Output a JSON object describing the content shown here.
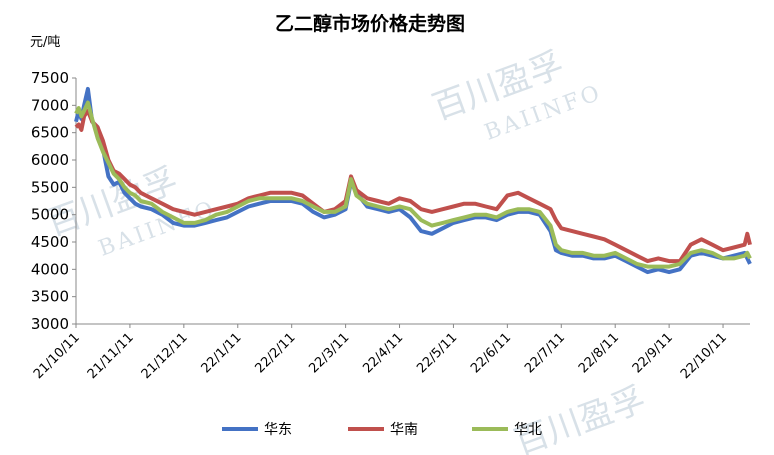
{
  "watermark": {
    "cn": "百川盈孚",
    "en": "BAIINFO"
  },
  "chart_data": {
    "type": "line",
    "title": "乙二醇市场价格走势图",
    "ylabel": "元/吨",
    "xlabel": "",
    "ylim": [
      3000,
      7500
    ],
    "yticks": [
      3000,
      3500,
      4000,
      4500,
      5000,
      5500,
      6000,
      6500,
      7000,
      7500
    ],
    "categories": [
      "21/10/11",
      "21/11/11",
      "21/12/11",
      "22/1/11",
      "22/2/11",
      "22/3/11",
      "22/4/11",
      "22/5/11",
      "22/6/11",
      "22/7/11",
      "22/8/11",
      "22/9/11",
      "22/10/11"
    ],
    "legend_position": "bottom",
    "grid": false,
    "series": [
      {
        "name": "华东",
        "color": "#4472c4",
        "values": [
          [
            0,
            6700
          ],
          [
            0.05,
            6900
          ],
          [
            0.1,
            6750
          ],
          [
            0.15,
            7000
          ],
          [
            0.22,
            7300
          ],
          [
            0.3,
            6700
          ],
          [
            0.4,
            6600
          ],
          [
            0.5,
            6200
          ],
          [
            0.6,
            5700
          ],
          [
            0.7,
            5550
          ],
          [
            0.8,
            5600
          ],
          [
            0.9,
            5400
          ],
          [
            1.0,
            5300
          ],
          [
            1.1,
            5200
          ],
          [
            1.2,
            5150
          ],
          [
            1.4,
            5100
          ],
          [
            1.6,
            5000
          ],
          [
            1.8,
            4850
          ],
          [
            2.0,
            4800
          ],
          [
            2.2,
            4800
          ],
          [
            2.4,
            4850
          ],
          [
            2.6,
            4900
          ],
          [
            2.8,
            4950
          ],
          [
            3.0,
            5050
          ],
          [
            3.2,
            5150
          ],
          [
            3.4,
            5200
          ],
          [
            3.6,
            5250
          ],
          [
            3.8,
            5250
          ],
          [
            4.0,
            5250
          ],
          [
            4.2,
            5200
          ],
          [
            4.4,
            5050
          ],
          [
            4.6,
            4950
          ],
          [
            4.8,
            5000
          ],
          [
            5.0,
            5100
          ],
          [
            5.1,
            5600
          ],
          [
            5.2,
            5400
          ],
          [
            5.4,
            5150
          ],
          [
            5.6,
            5100
          ],
          [
            5.8,
            5050
          ],
          [
            6.0,
            5100
          ],
          [
            6.2,
            4950
          ],
          [
            6.4,
            4700
          ],
          [
            6.6,
            4650
          ],
          [
            6.8,
            4750
          ],
          [
            7.0,
            4850
          ],
          [
            7.2,
            4900
          ],
          [
            7.4,
            4950
          ],
          [
            7.6,
            4950
          ],
          [
            7.8,
            4900
          ],
          [
            8.0,
            5000
          ],
          [
            8.2,
            5050
          ],
          [
            8.4,
            5050
          ],
          [
            8.6,
            5000
          ],
          [
            8.8,
            4700
          ],
          [
            8.9,
            4350
          ],
          [
            9.0,
            4300
          ],
          [
            9.2,
            4250
          ],
          [
            9.4,
            4250
          ],
          [
            9.6,
            4200
          ],
          [
            9.8,
            4200
          ],
          [
            10.0,
            4250
          ],
          [
            10.2,
            4150
          ],
          [
            10.4,
            4050
          ],
          [
            10.6,
            3950
          ],
          [
            10.8,
            4000
          ],
          [
            11.0,
            3950
          ],
          [
            11.2,
            4000
          ],
          [
            11.4,
            4250
          ],
          [
            11.6,
            4300
          ],
          [
            11.8,
            4250
          ],
          [
            12.0,
            4200
          ],
          [
            12.2,
            4250
          ],
          [
            12.4,
            4300
          ],
          [
            12.45,
            4200
          ],
          [
            12.5,
            4100
          ]
        ]
      },
      {
        "name": "华南",
        "color": "#c0504d",
        "values": [
          [
            0,
            6600
          ],
          [
            0.05,
            6650
          ],
          [
            0.1,
            6550
          ],
          [
            0.15,
            6800
          ],
          [
            0.22,
            6900
          ],
          [
            0.3,
            6700
          ],
          [
            0.4,
            6600
          ],
          [
            0.5,
            6350
          ],
          [
            0.6,
            6000
          ],
          [
            0.7,
            5800
          ],
          [
            0.8,
            5750
          ],
          [
            0.9,
            5650
          ],
          [
            1.0,
            5550
          ],
          [
            1.1,
            5500
          ],
          [
            1.2,
            5400
          ],
          [
            1.4,
            5300
          ],
          [
            1.6,
            5200
          ],
          [
            1.8,
            5100
          ],
          [
            2.0,
            5050
          ],
          [
            2.2,
            5000
          ],
          [
            2.4,
            5050
          ],
          [
            2.6,
            5100
          ],
          [
            2.8,
            5150
          ],
          [
            3.0,
            5200
          ],
          [
            3.2,
            5300
          ],
          [
            3.4,
            5350
          ],
          [
            3.6,
            5400
          ],
          [
            3.8,
            5400
          ],
          [
            4.0,
            5400
          ],
          [
            4.2,
            5350
          ],
          [
            4.4,
            5200
          ],
          [
            4.6,
            5050
          ],
          [
            4.8,
            5100
          ],
          [
            5.0,
            5250
          ],
          [
            5.1,
            5700
          ],
          [
            5.2,
            5450
          ],
          [
            5.4,
            5300
          ],
          [
            5.6,
            5250
          ],
          [
            5.8,
            5200
          ],
          [
            6.0,
            5300
          ],
          [
            6.2,
            5250
          ],
          [
            6.4,
            5100
          ],
          [
            6.6,
            5050
          ],
          [
            6.8,
            5100
          ],
          [
            7.0,
            5150
          ],
          [
            7.2,
            5200
          ],
          [
            7.4,
            5200
          ],
          [
            7.6,
            5150
          ],
          [
            7.8,
            5100
          ],
          [
            8.0,
            5350
          ],
          [
            8.2,
            5400
          ],
          [
            8.4,
            5300
          ],
          [
            8.6,
            5200
          ],
          [
            8.8,
            5100
          ],
          [
            8.9,
            4900
          ],
          [
            9.0,
            4750
          ],
          [
            9.2,
            4700
          ],
          [
            9.4,
            4650
          ],
          [
            9.6,
            4600
          ],
          [
            9.8,
            4550
          ],
          [
            10.0,
            4450
          ],
          [
            10.2,
            4350
          ],
          [
            10.4,
            4250
          ],
          [
            10.6,
            4150
          ],
          [
            10.8,
            4200
          ],
          [
            11.0,
            4150
          ],
          [
            11.2,
            4150
          ],
          [
            11.4,
            4450
          ],
          [
            11.6,
            4550
          ],
          [
            11.8,
            4450
          ],
          [
            12.0,
            4350
          ],
          [
            12.2,
            4400
          ],
          [
            12.4,
            4450
          ],
          [
            12.45,
            4650
          ],
          [
            12.5,
            4450
          ]
        ]
      },
      {
        "name": "华北",
        "color": "#9bbb59",
        "values": [
          [
            0,
            6850
          ],
          [
            0.05,
            6950
          ],
          [
            0.1,
            6800
          ],
          [
            0.15,
            6900
          ],
          [
            0.22,
            7050
          ],
          [
            0.3,
            6750
          ],
          [
            0.4,
            6400
          ],
          [
            0.5,
            6150
          ],
          [
            0.6,
            5950
          ],
          [
            0.7,
            5750
          ],
          [
            0.8,
            5650
          ],
          [
            0.9,
            5500
          ],
          [
            1.0,
            5400
          ],
          [
            1.1,
            5350
          ],
          [
            1.2,
            5250
          ],
          [
            1.4,
            5200
          ],
          [
            1.6,
            5050
          ],
          [
            1.8,
            4950
          ],
          [
            2.0,
            4850
          ],
          [
            2.2,
            4850
          ],
          [
            2.4,
            4900
          ],
          [
            2.6,
            5000
          ],
          [
            2.8,
            5050
          ],
          [
            3.0,
            5150
          ],
          [
            3.2,
            5250
          ],
          [
            3.4,
            5300
          ],
          [
            3.6,
            5300
          ],
          [
            3.8,
            5300
          ],
          [
            4.0,
            5300
          ],
          [
            4.2,
            5250
          ],
          [
            4.4,
            5150
          ],
          [
            4.6,
            5050
          ],
          [
            4.8,
            5050
          ],
          [
            5.0,
            5150
          ],
          [
            5.1,
            5650
          ],
          [
            5.2,
            5350
          ],
          [
            5.4,
            5200
          ],
          [
            5.6,
            5150
          ],
          [
            5.8,
            5100
          ],
          [
            6.0,
            5150
          ],
          [
            6.2,
            5100
          ],
          [
            6.4,
            4900
          ],
          [
            6.6,
            4800
          ],
          [
            6.8,
            4850
          ],
          [
            7.0,
            4900
          ],
          [
            7.2,
            4950
          ],
          [
            7.4,
            5000
          ],
          [
            7.6,
            5000
          ],
          [
            7.8,
            4950
          ],
          [
            8.0,
            5050
          ],
          [
            8.2,
            5100
          ],
          [
            8.4,
            5100
          ],
          [
            8.6,
            5050
          ],
          [
            8.8,
            4800
          ],
          [
            8.9,
            4450
          ],
          [
            9.0,
            4350
          ],
          [
            9.2,
            4300
          ],
          [
            9.4,
            4300
          ],
          [
            9.6,
            4250
          ],
          [
            9.8,
            4250
          ],
          [
            10.0,
            4300
          ],
          [
            10.2,
            4200
          ],
          [
            10.4,
            4100
          ],
          [
            10.6,
            4050
          ],
          [
            10.8,
            4050
          ],
          [
            11.0,
            4050
          ],
          [
            11.2,
            4100
          ],
          [
            11.4,
            4300
          ],
          [
            11.6,
            4350
          ],
          [
            11.8,
            4300
          ],
          [
            12.0,
            4200
          ],
          [
            12.2,
            4200
          ],
          [
            12.4,
            4250
          ],
          [
            12.45,
            4300
          ],
          [
            12.5,
            4200
          ]
        ]
      }
    ]
  }
}
